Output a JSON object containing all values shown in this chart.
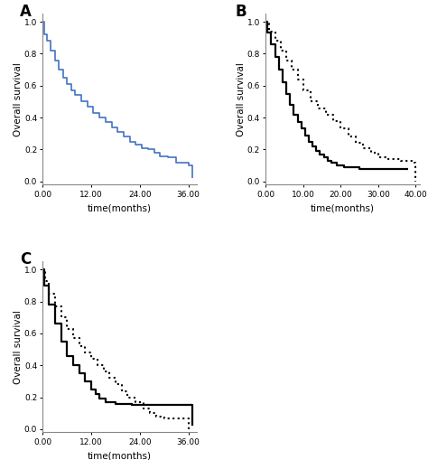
{
  "panel_A": {
    "label": "A",
    "color": "#4472C4",
    "linestyle": "solid",
    "linewidth": 1.2,
    "times": [
      0,
      0.3,
      1.0,
      2.0,
      3.0,
      4.0,
      5.0,
      6.0,
      7.0,
      8.0,
      9.5,
      11.0,
      12.5,
      14.0,
      15.5,
      17.0,
      18.5,
      20.0,
      21.5,
      23.0,
      24.5,
      26.0,
      27.5,
      29.0,
      31.0,
      33.0,
      36.0,
      37.0
    ],
    "surv": [
      1.0,
      0.92,
      0.88,
      0.82,
      0.76,
      0.7,
      0.65,
      0.61,
      0.57,
      0.54,
      0.5,
      0.47,
      0.43,
      0.4,
      0.37,
      0.34,
      0.31,
      0.28,
      0.25,
      0.23,
      0.21,
      0.2,
      0.18,
      0.16,
      0.15,
      0.12,
      0.1,
      0.02
    ],
    "xlim": [
      0,
      38
    ],
    "ylim": [
      -0.02,
      1.05
    ],
    "xticks": [
      0,
      12,
      24,
      36
    ],
    "xticklabels": [
      "0.00",
      "12.00",
      "24.00",
      "36.00"
    ],
    "yticks": [
      0.0,
      0.2,
      0.4,
      0.6,
      0.8,
      1.0
    ],
    "xlabel": "time(months)",
    "ylabel": "Overall survival"
  },
  "panel_B": {
    "label": "B",
    "lines": [
      {
        "color": "#000000",
        "linestyle": "solid",
        "linewidth": 1.6,
        "times": [
          0,
          0.5,
          1.5,
          2.5,
          3.5,
          4.5,
          5.5,
          6.5,
          7.5,
          8.5,
          9.5,
          10.5,
          11.5,
          12.5,
          13.5,
          14.5,
          15.5,
          16.5,
          17.5,
          19.0,
          21.0,
          25.0,
          29.0,
          38.0
        ],
        "surv": [
          1.0,
          0.93,
          0.86,
          0.78,
          0.7,
          0.62,
          0.55,
          0.48,
          0.42,
          0.37,
          0.33,
          0.29,
          0.25,
          0.22,
          0.19,
          0.17,
          0.15,
          0.13,
          0.12,
          0.1,
          0.09,
          0.08,
          0.08,
          0.08
        ]
      },
      {
        "color": "#000000",
        "linestyle": "dotted",
        "linewidth": 1.5,
        "times": [
          0,
          1.0,
          2.5,
          4.0,
          5.5,
          7.0,
          8.5,
          10.0,
          12.0,
          14.0,
          16.0,
          18.0,
          20.0,
          22.0,
          24.0,
          26.0,
          28.0,
          30.0,
          32.0,
          36.0,
          39.0,
          40.0
        ],
        "surv": [
          1.0,
          0.94,
          0.88,
          0.82,
          0.76,
          0.7,
          0.64,
          0.57,
          0.5,
          0.46,
          0.42,
          0.38,
          0.33,
          0.28,
          0.24,
          0.21,
          0.18,
          0.15,
          0.14,
          0.13,
          0.12,
          0.0
        ]
      }
    ],
    "xlim": [
      0,
      41
    ],
    "ylim": [
      -0.02,
      1.05
    ],
    "xticks": [
      0,
      10,
      20,
      30,
      40
    ],
    "xticklabels": [
      "0.00",
      "10.00",
      "20.00",
      "30.00",
      "40.00"
    ],
    "yticks": [
      0.0,
      0.2,
      0.4,
      0.6,
      0.8,
      1.0
    ],
    "xlabel": "time(months)",
    "ylabel": "Overall survival"
  },
  "panel_C": {
    "label": "C",
    "lines": [
      {
        "color": "#000000",
        "linestyle": "solid",
        "linewidth": 1.6,
        "times": [
          0,
          0.4,
          1.5,
          3.0,
          4.5,
          6.0,
          7.5,
          9.0,
          10.5,
          12.0,
          13.0,
          14.0,
          15.5,
          18.0,
          22.0,
          27.0,
          36.0,
          37.0
        ],
        "surv": [
          1.0,
          0.9,
          0.78,
          0.66,
          0.55,
          0.46,
          0.4,
          0.35,
          0.3,
          0.25,
          0.22,
          0.19,
          0.17,
          0.16,
          0.15,
          0.15,
          0.15,
          0.02
        ]
      },
      {
        "color": "#000000",
        "linestyle": "dotted",
        "linewidth": 1.5,
        "times": [
          0,
          0.5,
          1.5,
          3.0,
          4.5,
          6.0,
          7.5,
          9.0,
          10.5,
          12.0,
          13.5,
          15.0,
          16.5,
          18.0,
          19.5,
          21.0,
          23.0,
          25.0,
          26.5,
          28.0,
          30.0,
          36.0
        ],
        "surv": [
          1.0,
          0.93,
          0.85,
          0.77,
          0.7,
          0.63,
          0.57,
          0.52,
          0.48,
          0.44,
          0.4,
          0.36,
          0.32,
          0.28,
          0.24,
          0.2,
          0.17,
          0.13,
          0.1,
          0.08,
          0.07,
          0.0
        ]
      }
    ],
    "xlim": [
      0,
      38
    ],
    "ylim": [
      -0.02,
      1.05
    ],
    "xticks": [
      0,
      12,
      24,
      36
    ],
    "xticklabels": [
      "0.00",
      "12.00",
      "24.00",
      "36.00"
    ],
    "yticks": [
      0.0,
      0.2,
      0.4,
      0.6,
      0.8,
      1.0
    ],
    "xlabel": "time(months)",
    "ylabel": "Overall survival"
  },
  "figure_bg": "#ffffff",
  "axes_bg": "#ffffff",
  "tick_fontsize": 6.5,
  "label_fontsize": 7.5,
  "panel_label_fontsize": 12
}
